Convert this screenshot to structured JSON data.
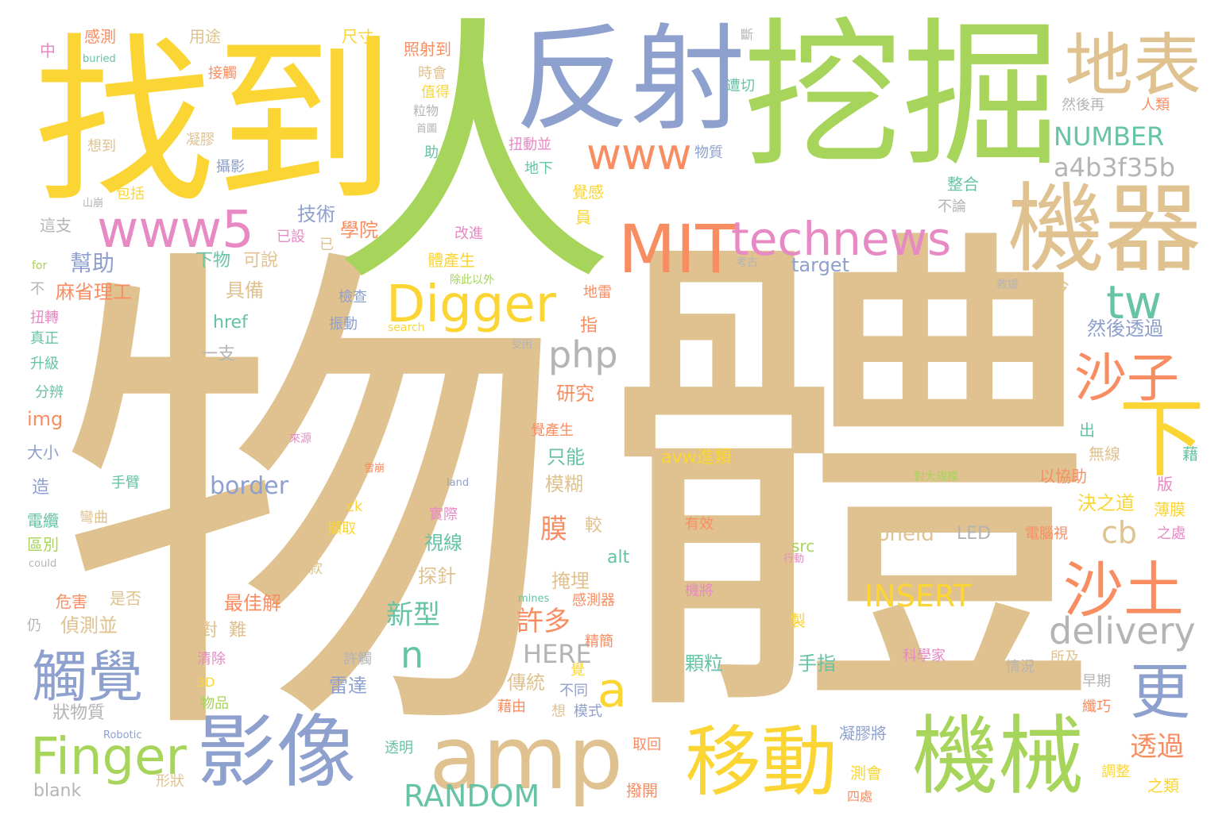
{
  "words": [
    {
      "text": "物",
      "c": "tan"
    },
    {
      "text": "體",
      "c": "tan"
    },
    {
      "text": "人",
      "c": "grn"
    },
    {
      "text": "找到",
      "c": "yel"
    },
    {
      "text": "挖掘",
      "c": "grn"
    },
    {
      "text": "反射",
      "c": "blu"
    },
    {
      "text": "地表",
      "c": "tan"
    },
    {
      "text": "機器",
      "c": "tan"
    },
    {
      "text": "MIT",
      "c": "org"
    },
    {
      "text": "technews",
      "c": "pnk"
    },
    {
      "text": "www5",
      "c": "pnk"
    },
    {
      "text": "www",
      "c": "org"
    },
    {
      "text": "Digger",
      "c": "yel"
    },
    {
      "text": "amp",
      "c": "tan"
    },
    {
      "text": "影像",
      "c": "blu"
    },
    {
      "text": "移動",
      "c": "yel"
    },
    {
      "text": "機械",
      "c": "grn"
    },
    {
      "text": "Finger",
      "c": "grn"
    },
    {
      "text": "觸覺",
      "c": "blu"
    },
    {
      "text": "沙子",
      "c": "org"
    },
    {
      "text": "沙土",
      "c": "org"
    },
    {
      "text": "下",
      "c": "yel"
    },
    {
      "text": "更",
      "c": "blu"
    },
    {
      "text": "tw",
      "c": "tea"
    },
    {
      "text": "delivery",
      "c": "gry"
    },
    {
      "text": "a4b3f35b",
      "c": "gry"
    },
    {
      "text": "NUMBER",
      "c": "tea"
    },
    {
      "text": "php",
      "c": "gry"
    },
    {
      "text": "INSERT",
      "c": "yel"
    },
    {
      "text": "RANDOM",
      "c": "tea"
    },
    {
      "text": "a",
      "c": "yel"
    },
    {
      "text": "n",
      "c": "tea"
    },
    {
      "text": "cb",
      "c": "tan"
    },
    {
      "text": "HERE",
      "c": "gry"
    },
    {
      "text": "zoneid",
      "c": "tan"
    },
    {
      "text": "LED",
      "c": "gry"
    },
    {
      "text": "border",
      "c": "blu"
    },
    {
      "text": "avw進類",
      "c": "yel"
    },
    {
      "text": "幫助",
      "c": "blu"
    },
    {
      "text": "麻省理工",
      "c": "org"
    },
    {
      "text": "技術",
      "c": "blu"
    },
    {
      "text": "學院",
      "c": "org"
    },
    {
      "text": "下物",
      "c": "tea"
    },
    {
      "text": "可說",
      "c": "tan"
    },
    {
      "text": "具備",
      "c": "tan"
    },
    {
      "text": "膜",
      "c": "org"
    },
    {
      "text": "新型",
      "c": "tea"
    },
    {
      "text": "許多",
      "c": "org"
    },
    {
      "text": "透過",
      "c": "org"
    },
    {
      "text": "target",
      "c": "blu"
    },
    {
      "text": "數據",
      "c": "tan"
    },
    {
      "text": "如今",
      "c": "tan"
    },
    {
      "text": "然後透過",
      "c": "blu"
    },
    {
      "text": "研究",
      "c": "org"
    },
    {
      "text": "只能",
      "c": "tea"
    },
    {
      "text": "模糊",
      "c": "tan"
    },
    {
      "text": "決之道",
      "c": "yel"
    },
    {
      "text": "視線",
      "c": "tea"
    },
    {
      "text": "探針",
      "c": "tan"
    },
    {
      "text": "掩埋",
      "c": "tan"
    },
    {
      "text": "最佳解",
      "c": "org"
    },
    {
      "text": "偵測並",
      "c": "tan"
    },
    {
      "text": "手指",
      "c": "tea"
    },
    {
      "text": "顆粒",
      "c": "tea"
    },
    {
      "text": "傳統",
      "c": "tan"
    },
    {
      "text": "雷達",
      "c": "blu"
    },
    {
      "text": "狀物質",
      "c": "gry"
    },
    {
      "text": "Robotic",
      "c": "blu"
    },
    {
      "text": "透明",
      "c": "tea"
    },
    {
      "text": "blank",
      "c": "gry"
    },
    {
      "text": "形狀",
      "c": "tan"
    },
    {
      "text": "撥開",
      "c": "org"
    },
    {
      "text": "測會",
      "c": "yel"
    },
    {
      "text": "之類",
      "c": "yel"
    },
    {
      "text": "調整",
      "c": "yel"
    },
    {
      "text": "凝膠將",
      "c": "blu"
    },
    {
      "text": "取回",
      "c": "org"
    },
    {
      "text": "科學家",
      "c": "pnk"
    },
    {
      "text": "情況",
      "c": "gry"
    },
    {
      "text": "纖巧",
      "c": "org"
    },
    {
      "text": "早期",
      "c": "gry"
    },
    {
      "text": "所及",
      "c": "tan"
    },
    {
      "text": "電腦視",
      "c": "org"
    },
    {
      "text": "之處",
      "c": "pnk"
    },
    {
      "text": "薄膜",
      "c": "yel"
    },
    {
      "text": "版",
      "c": "pnk"
    },
    {
      "text": "藉",
      "c": "tea"
    },
    {
      "text": "無線",
      "c": "tan"
    },
    {
      "text": "以協助",
      "c": "org"
    },
    {
      "text": "出",
      "c": "tea"
    },
    {
      "text": "對大規模",
      "c": "grn"
    },
    {
      "text": "感測",
      "c": "org"
    },
    {
      "text": "用途",
      "c": "tan"
    },
    {
      "text": "尺寸",
      "c": "yel"
    },
    {
      "text": "照射到",
      "c": "org"
    },
    {
      "text": "中",
      "c": "pnk"
    },
    {
      "text": "buried",
      "c": "tea"
    },
    {
      "text": "接觸",
      "c": "org"
    },
    {
      "text": "凝膠",
      "c": "tan"
    },
    {
      "text": "想到",
      "c": "tan"
    },
    {
      "text": "攝影",
      "c": "blu"
    },
    {
      "text": "包括",
      "c": "yel"
    },
    {
      "text": "山崩",
      "c": "gry"
    },
    {
      "text": "這支",
      "c": "gry"
    },
    {
      "text": "for",
      "c": "grn"
    },
    {
      "text": "不",
      "c": "gry"
    },
    {
      "text": "扭轉",
      "c": "pnk"
    },
    {
      "text": "真正",
      "c": "tea"
    },
    {
      "text": "升級",
      "c": "tea"
    },
    {
      "text": "分辨",
      "c": "tea"
    },
    {
      "text": "img",
      "c": "org"
    },
    {
      "text": "大小",
      "c": "blu"
    },
    {
      "text": "造",
      "c": "blu"
    },
    {
      "text": "電纜",
      "c": "tea"
    },
    {
      "text": "區別",
      "c": "grn"
    },
    {
      "text": "could",
      "c": "gry"
    },
    {
      "text": "仍",
      "c": "gry"
    },
    {
      "text": "危害",
      "c": "org"
    },
    {
      "text": "是否",
      "c": "tan"
    },
    {
      "text": "手臂",
      "c": "tea"
    },
    {
      "text": "彎曲",
      "c": "tan"
    },
    {
      "text": "時會",
      "c": "tan"
    },
    {
      "text": "值得",
      "c": "yel"
    },
    {
      "text": "粒物",
      "c": "gry"
    },
    {
      "text": "首圖",
      "c": "gry"
    },
    {
      "text": "助",
      "c": "tea"
    },
    {
      "text": "扭動並",
      "c": "pnk"
    },
    {
      "text": "地下",
      "c": "tea"
    },
    {
      "text": "物質",
      "c": "blu"
    },
    {
      "text": "斷",
      "c": "gry"
    },
    {
      "text": "遭切",
      "c": "tea"
    },
    {
      "text": "然後再",
      "c": "gry"
    },
    {
      "text": "人類",
      "c": "org"
    },
    {
      "text": "整合",
      "c": "tea"
    },
    {
      "text": "不論",
      "c": "gry"
    },
    {
      "text": "覺感",
      "c": "yel"
    },
    {
      "text": "員",
      "c": "yel"
    },
    {
      "text": "改進",
      "c": "pnk"
    },
    {
      "text": "已設",
      "c": "pnk"
    },
    {
      "text": "已",
      "c": "tan"
    },
    {
      "text": "體產生",
      "c": "yel"
    },
    {
      "text": "除此以外",
      "c": "grn"
    },
    {
      "text": "考古",
      "c": "gry"
    },
    {
      "text": "救援",
      "c": "gry"
    },
    {
      "text": "地雷",
      "c": "org"
    },
    {
      "text": "檢查",
      "c": "blu"
    },
    {
      "text": "href",
      "c": "tea"
    },
    {
      "text": "振動",
      "c": "blu"
    },
    {
      "text": "search",
      "c": "yel"
    },
    {
      "text": "指",
      "c": "org"
    },
    {
      "text": "受困",
      "c": "gry"
    },
    {
      "text": "下物體",
      "c": "tan"
    },
    {
      "text": "一支",
      "c": "gry"
    },
    {
      "text": "來源",
      "c": "pnk"
    },
    {
      "text": "覺產生",
      "c": "org"
    },
    {
      "text": "雪崩",
      "c": "org"
    },
    {
      "text": "land",
      "c": "blu"
    },
    {
      "text": "ck",
      "c": "yel"
    },
    {
      "text": "擷取",
      "c": "yel"
    },
    {
      "text": "實際",
      "c": "pnk"
    },
    {
      "text": "較",
      "c": "tan"
    },
    {
      "text": "有效",
      "c": "org"
    },
    {
      "text": "這款",
      "c": "tan"
    },
    {
      "text": "alt",
      "c": "tea"
    },
    {
      "text": "src",
      "c": "grn"
    },
    {
      "text": "行動",
      "c": "pnk"
    },
    {
      "text": "mines",
      "c": "tea"
    },
    {
      "text": "感測器",
      "c": "org"
    },
    {
      "text": "機將",
      "c": "pnk"
    },
    {
      "text": "清除",
      "c": "pnk"
    },
    {
      "text": "3D",
      "c": "yel"
    },
    {
      "text": "物品",
      "c": "grn"
    },
    {
      "text": "對",
      "c": "tan"
    },
    {
      "text": "難",
      "c": "tan"
    },
    {
      "text": "許觸",
      "c": "gry"
    },
    {
      "text": "精簡",
      "c": "org"
    },
    {
      "text": "覺",
      "c": "yel"
    },
    {
      "text": "不同",
      "c": "blu"
    },
    {
      "text": "模式",
      "c": "blu"
    },
    {
      "text": "想",
      "c": "tan"
    },
    {
      "text": "藉由",
      "c": "org"
    },
    {
      "text": "製",
      "c": "yel"
    },
    {
      "text": "四處",
      "c": "org"
    }
  ]
}
